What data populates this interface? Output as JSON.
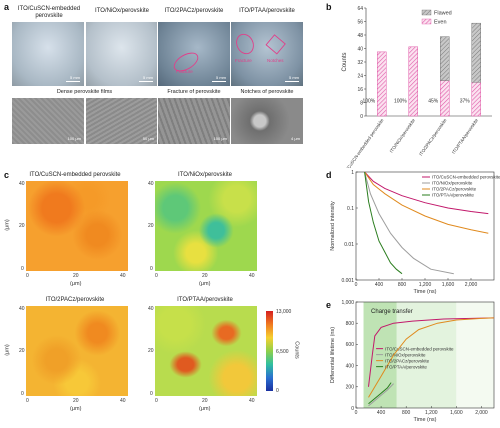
{
  "panels": {
    "a": "a",
    "b": "b",
    "c": "c",
    "d": "d",
    "e": "e"
  },
  "photos": {
    "titles": [
      "ITO/CuSCN-embedded perovskite",
      "ITO/NiOx/perovskite",
      "ITO/2PACz/perovskite",
      "ITO/PTAA/perovskite"
    ],
    "scalebars": [
      "5 mm",
      "5 mm",
      "5 mm",
      "5 mm"
    ],
    "annotations": {
      "fracture": "Fracture",
      "fracture2": "Fracture",
      "notches": "Notches"
    }
  },
  "sem": {
    "titles": [
      "Dense perovskite films",
      "Fracture of perovskite",
      "Notches of perovskite"
    ],
    "scalebars": [
      "100 μm",
      "50 μm",
      "100 μm",
      "4 μm"
    ]
  },
  "maps": {
    "titles": [
      "ITO/CuSCN-embedded perovskite",
      "ITO/NiOx/perovskite",
      "ITO/2PACz/perovskite",
      "ITO/PTAA/perovskite"
    ],
    "xlabel": "(μm)",
    "ylabel": "(μm)",
    "ticks": [
      "0",
      "20",
      "40"
    ],
    "colorbar": {
      "ticks": [
        "13,000",
        "6,500",
        "0"
      ],
      "label": "Counts"
    }
  },
  "colors": {
    "flawed": "#9a9a9a",
    "even": "#e05aa8",
    "cuscn": "#c2186b",
    "nio": "#9e9e9e",
    "pacz": "#e08a1e",
    "ptaa": "#2a7d1e"
  },
  "chart_data": [
    {
      "type": "bar",
      "panel": "b",
      "categories": [
        "ITO/CuSCN-embedded perovskite",
        "ITO/NiOx/perovskite",
        "ITO/2PACz/perovskite",
        "ITO/PTAA/perovskite"
      ],
      "series": [
        {
          "name": "Even",
          "values": [
            38,
            41,
            21,
            20
          ]
        },
        {
          "name": "Flawed",
          "values": [
            0,
            0,
            26,
            35
          ]
        }
      ],
      "bar_labels": [
        "100%",
        "100%",
        "45%",
        "37%"
      ],
      "ylabel": "Counts",
      "ylim": [
        0,
        64
      ],
      "yticks": [
        0,
        8,
        16,
        24,
        32,
        40,
        48,
        56,
        64
      ],
      "legend": "top-right"
    },
    {
      "type": "line",
      "panel": "d",
      "xlabel": "Time (ns)",
      "ylabel": "Normalized intensity",
      "xlim": [
        0,
        2400
      ],
      "xticks": [
        "0",
        "400",
        "800",
        "1,200",
        "1,600",
        "2,000"
      ],
      "ylim": [
        0.001,
        1
      ],
      "yticks": [
        "0.001",
        "0.01",
        "0.1",
        "1"
      ],
      "yscale": "log",
      "legend": "top-right",
      "series": [
        {
          "name": "ITO/CuSCN-embedded perovskite",
          "x": [
            150,
            300,
            500,
            800,
            1200,
            1600,
            2000,
            2300
          ],
          "y": [
            1,
            0.55,
            0.35,
            0.22,
            0.14,
            0.1,
            0.08,
            0.07
          ]
        },
        {
          "name": "ITO/NiOx/perovskite",
          "x": [
            150,
            250,
            400,
            600,
            800,
            1000,
            1300,
            1700
          ],
          "y": [
            1,
            0.25,
            0.07,
            0.02,
            0.008,
            0.004,
            0.002,
            0.0015
          ]
        },
        {
          "name": "ITO/2PACz/perovskite",
          "x": [
            150,
            300,
            500,
            800,
            1200,
            1600,
            2000,
            2300
          ],
          "y": [
            1,
            0.45,
            0.25,
            0.12,
            0.06,
            0.035,
            0.025,
            0.02
          ]
        },
        {
          "name": "ITO/PTAA/perovskite",
          "x": [
            150,
            220,
            300,
            400,
            500,
            600,
            700,
            800
          ],
          "y": [
            1,
            0.15,
            0.04,
            0.012,
            0.006,
            0.003,
            0.002,
            0.0015
          ]
        }
      ]
    },
    {
      "type": "line",
      "panel": "e",
      "annotation": "Charge transfer",
      "xlabel": "Time (ns)",
      "ylabel": "Differential lifetime (ns)",
      "xlim": [
        0,
        2200
      ],
      "xticks": [
        "0",
        "400",
        "800",
        "1,200",
        "1,600",
        "2,000"
      ],
      "ylim": [
        0,
        1000
      ],
      "yticks": [
        "0",
        "200",
        "400",
        "600",
        "800",
        "1,000"
      ],
      "legend": "center",
      "series": [
        {
          "name": "ITO/CuSCN-embedded perovskite",
          "x": [
            200,
            260,
            300,
            400,
            600,
            900,
            1400,
            2200
          ],
          "y": [
            200,
            500,
            680,
            760,
            800,
            820,
            840,
            850
          ]
        },
        {
          "name": "ITO/NiOx/perovskite",
          "x": [
            200,
            300,
            400,
            500,
            600
          ],
          "y": [
            20,
            70,
            120,
            170,
            230
          ]
        },
        {
          "name": "ITO/2PACz/perovskite",
          "x": [
            200,
            400,
            600,
            800,
            1000,
            1300,
            1600,
            2000,
            2200
          ],
          "y": [
            100,
            300,
            500,
            650,
            740,
            800,
            830,
            845,
            850
          ]
        },
        {
          "name": "ITO/PTAA/perovskite",
          "x": [
            200,
            300,
            400,
            500,
            560
          ],
          "y": [
            40,
            90,
            140,
            190,
            240
          ]
        }
      ]
    }
  ]
}
